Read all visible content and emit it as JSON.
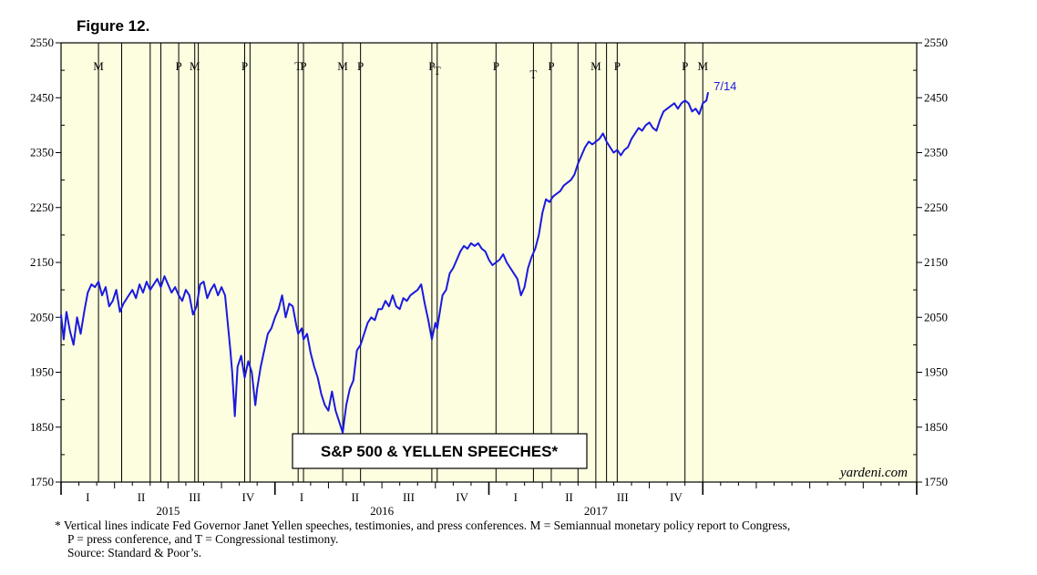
{
  "figure_label": "Figure 12.",
  "chart_data": {
    "type": "line",
    "title": "S&P 500 & YELLEN SPEECHES*",
    "watermark": "yardeni.com",
    "end_label": "7/14",
    "line_color": "#1a1adf",
    "background_color": "#fdfde0",
    "ylim": [
      1750,
      2550
    ],
    "y_ticks": [
      1750,
      1850,
      1950,
      2050,
      2150,
      2250,
      2350,
      2450,
      2550
    ],
    "x_range_months": [
      0,
      36
    ],
    "quarter_labels": [
      "I",
      "II",
      "III",
      "IV",
      "I",
      "II",
      "III",
      "IV",
      "I",
      "II",
      "III",
      "IV"
    ],
    "year_labels": [
      "2015",
      "2016",
      "2017"
    ],
    "events": [
      {
        "m": 2.1,
        "label": "M"
      },
      {
        "m": 3.4,
        "label": ""
      },
      {
        "m": 5.0,
        "label": ""
      },
      {
        "m": 5.6,
        "label": ""
      },
      {
        "m": 6.6,
        "label": "P"
      },
      {
        "m": 7.5,
        "label": "M"
      },
      {
        "m": 7.7,
        "label": ""
      },
      {
        "m": 10.3,
        "label": "P"
      },
      {
        "m": 10.6,
        "label": ""
      },
      {
        "m": 13.3,
        "label": "T"
      },
      {
        "m": 13.6,
        "label": "P"
      },
      {
        "m": 15.8,
        "label": "M"
      },
      {
        "m": 16.8,
        "label": "P"
      },
      {
        "m": 20.8,
        "label": "P"
      },
      {
        "m": 21.1,
        "label": "T"
      },
      {
        "m": 24.4,
        "label": "P"
      },
      {
        "m": 26.5,
        "label": "T"
      },
      {
        "m": 27.5,
        "label": "P"
      },
      {
        "m": 29.0,
        "label": ""
      },
      {
        "m": 30.0,
        "label": "M"
      },
      {
        "m": 30.6,
        "label": ""
      },
      {
        "m": 31.2,
        "label": "P"
      },
      {
        "m": 35.0,
        "label": "P"
      },
      {
        "m": 36.0,
        "label": "M"
      }
    ],
    "series": [
      {
        "name": "S&P 500",
        "points": [
          [
            0.0,
            2055
          ],
          [
            0.15,
            2010
          ],
          [
            0.3,
            2060
          ],
          [
            0.5,
            2025
          ],
          [
            0.7,
            2000
          ],
          [
            0.9,
            2050
          ],
          [
            1.1,
            2020
          ],
          [
            1.3,
            2060
          ],
          [
            1.5,
            2095
          ],
          [
            1.7,
            2110
          ],
          [
            1.9,
            2105
          ],
          [
            2.1,
            2115
          ],
          [
            2.3,
            2090
          ],
          [
            2.5,
            2105
          ],
          [
            2.7,
            2070
          ],
          [
            2.9,
            2080
          ],
          [
            3.1,
            2100
          ],
          [
            3.3,
            2060
          ],
          [
            3.5,
            2075
          ],
          [
            3.8,
            2090
          ],
          [
            4.0,
            2100
          ],
          [
            4.2,
            2085
          ],
          [
            4.4,
            2110
          ],
          [
            4.6,
            2095
          ],
          [
            4.8,
            2115
          ],
          [
            5.0,
            2100
          ],
          [
            5.2,
            2110
          ],
          [
            5.4,
            2120
          ],
          [
            5.6,
            2105
          ],
          [
            5.8,
            2125
          ],
          [
            6.0,
            2110
          ],
          [
            6.2,
            2095
          ],
          [
            6.4,
            2105
          ],
          [
            6.6,
            2090
          ],
          [
            6.8,
            2080
          ],
          [
            7.0,
            2100
          ],
          [
            7.2,
            2090
          ],
          [
            7.4,
            2055
          ],
          [
            7.6,
            2070
          ],
          [
            7.8,
            2110
          ],
          [
            8.0,
            2115
          ],
          [
            8.2,
            2085
          ],
          [
            8.4,
            2100
          ],
          [
            8.6,
            2110
          ],
          [
            8.8,
            2090
          ],
          [
            9.0,
            2105
          ],
          [
            9.2,
            2090
          ],
          [
            9.35,
            2040
          ],
          [
            9.5,
            1990
          ],
          [
            9.6,
            1950
          ],
          [
            9.75,
            1870
          ],
          [
            9.9,
            1960
          ],
          [
            10.1,
            1980
          ],
          [
            10.3,
            1940
          ],
          [
            10.5,
            1970
          ],
          [
            10.7,
            1950
          ],
          [
            10.9,
            1890
          ],
          [
            11.0,
            1920
          ],
          [
            11.2,
            1960
          ],
          [
            11.4,
            1990
          ],
          [
            11.6,
            2020
          ],
          [
            11.8,
            2030
          ],
          [
            12.0,
            2050
          ],
          [
            12.2,
            2065
          ],
          [
            12.4,
            2090
          ],
          [
            12.6,
            2050
          ],
          [
            12.8,
            2075
          ],
          [
            13.0,
            2070
          ],
          [
            13.2,
            2035
          ],
          [
            13.3,
            2020
          ],
          [
            13.5,
            2030
          ],
          [
            13.6,
            2010
          ],
          [
            13.8,
            2020
          ],
          [
            14.0,
            1985
          ],
          [
            14.2,
            1960
          ],
          [
            14.4,
            1940
          ],
          [
            14.6,
            1910
          ],
          [
            14.8,
            1890
          ],
          [
            15.0,
            1880
          ],
          [
            15.2,
            1915
          ],
          [
            15.4,
            1880
          ],
          [
            15.6,
            1860
          ],
          [
            15.8,
            1840
          ],
          [
            15.9,
            1865
          ],
          [
            16.0,
            1890
          ],
          [
            16.2,
            1920
          ],
          [
            16.4,
            1935
          ],
          [
            16.6,
            1990
          ],
          [
            16.8,
            2000
          ],
          [
            17.0,
            2020
          ],
          [
            17.2,
            2040
          ],
          [
            17.4,
            2050
          ],
          [
            17.6,
            2045
          ],
          [
            17.8,
            2065
          ],
          [
            18.0,
            2065
          ],
          [
            18.2,
            2080
          ],
          [
            18.4,
            2070
          ],
          [
            18.6,
            2090
          ],
          [
            18.8,
            2070
          ],
          [
            19.0,
            2065
          ],
          [
            19.2,
            2085
          ],
          [
            19.4,
            2080
          ],
          [
            19.6,
            2090
          ],
          [
            19.8,
            2095
          ],
          [
            20.0,
            2100
          ],
          [
            20.2,
            2110
          ],
          [
            20.4,
            2075
          ],
          [
            20.6,
            2045
          ],
          [
            20.8,
            2010
          ],
          [
            21.0,
            2040
          ],
          [
            21.1,
            2030
          ],
          [
            21.25,
            2060
          ],
          [
            21.4,
            2090
          ],
          [
            21.6,
            2100
          ],
          [
            21.8,
            2130
          ],
          [
            22.0,
            2140
          ],
          [
            22.2,
            2155
          ],
          [
            22.4,
            2170
          ],
          [
            22.6,
            2180
          ],
          [
            22.8,
            2175
          ],
          [
            23.0,
            2185
          ],
          [
            23.2,
            2180
          ],
          [
            23.4,
            2185
          ],
          [
            23.6,
            2175
          ],
          [
            23.8,
            2170
          ],
          [
            24.0,
            2155
          ],
          [
            24.2,
            2145
          ],
          [
            24.4,
            2150
          ],
          [
            24.6,
            2155
          ],
          [
            24.8,
            2165
          ],
          [
            25.0,
            2150
          ],
          [
            25.2,
            2140
          ],
          [
            25.4,
            2130
          ],
          [
            25.6,
            2120
          ],
          [
            25.8,
            2090
          ],
          [
            26.0,
            2105
          ],
          [
            26.2,
            2140
          ],
          [
            26.4,
            2160
          ],
          [
            26.6,
            2175
          ],
          [
            26.8,
            2200
          ],
          [
            27.0,
            2240
          ],
          [
            27.2,
            2265
          ],
          [
            27.4,
            2260
          ],
          [
            27.6,
            2270
          ],
          [
            27.8,
            2275
          ],
          [
            28.0,
            2280
          ],
          [
            28.2,
            2290
          ],
          [
            28.4,
            2295
          ],
          [
            28.6,
            2300
          ],
          [
            28.8,
            2310
          ],
          [
            29.0,
            2330
          ],
          [
            29.2,
            2345
          ],
          [
            29.4,
            2360
          ],
          [
            29.6,
            2370
          ],
          [
            29.8,
            2365
          ],
          [
            30.0,
            2370
          ],
          [
            30.2,
            2375
          ],
          [
            30.4,
            2385
          ],
          [
            30.6,
            2370
          ],
          [
            30.8,
            2360
          ],
          [
            31.0,
            2350
          ],
          [
            31.2,
            2355
          ],
          [
            31.4,
            2345
          ],
          [
            31.6,
            2355
          ],
          [
            31.8,
            2360
          ],
          [
            32.0,
            2375
          ],
          [
            32.2,
            2385
          ],
          [
            32.4,
            2395
          ],
          [
            32.6,
            2390
          ],
          [
            32.8,
            2400
          ],
          [
            33.0,
            2405
          ],
          [
            33.2,
            2395
          ],
          [
            33.4,
            2390
          ],
          [
            33.6,
            2410
          ],
          [
            33.8,
            2425
          ],
          [
            34.0,
            2430
          ],
          [
            34.2,
            2435
          ],
          [
            34.4,
            2440
          ],
          [
            34.6,
            2430
          ],
          [
            34.8,
            2440
          ],
          [
            35.0,
            2445
          ],
          [
            35.2,
            2440
          ],
          [
            35.4,
            2425
          ],
          [
            35.6,
            2430
          ],
          [
            35.8,
            2420
          ],
          [
            36.0,
            2440
          ],
          [
            36.2,
            2445
          ],
          [
            36.3,
            2460
          ]
        ]
      }
    ]
  },
  "footnote": {
    "marker": "*",
    "line1": "Vertical lines indicate Fed Governor Janet Yellen speeches, testimonies, and press conferences. M = Semiannual monetary policy report to Congress,",
    "line2": "P = press conference, and T = Congressional testimony.",
    "line3": "Source: Standard & Poor’s."
  }
}
